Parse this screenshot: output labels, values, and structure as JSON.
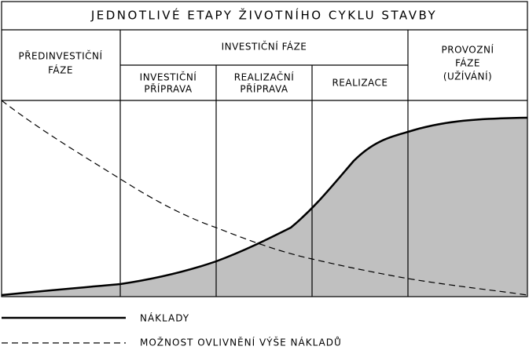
{
  "title": "JEDNOTLIVÉ ETAPY ŽIVOTNÍHO CYKLU STAVBY",
  "phases": {
    "pre_investment": [
      "PŘEDINVESTIČNÍ",
      "FÁZE"
    ],
    "investment": {
      "label": "INVESTIČNÍ FÁZE",
      "subphases": [
        [
          "INVESTIČNÍ",
          "PŘÍPRAVA"
        ],
        [
          "REALIZAČNÍ",
          "PŘÍPRAVA"
        ],
        [
          "REALIZACE"
        ]
      ]
    },
    "operation": [
      "PROVOZNÍ",
      "FÁZE",
      "(UŽÍVÁNÍ)"
    ]
  },
  "legend": [
    "NÁKLADY",
    "MOŽNOST OVLIVNĚNÍ VÝŠE NÁKLADŮ"
  ]
}
